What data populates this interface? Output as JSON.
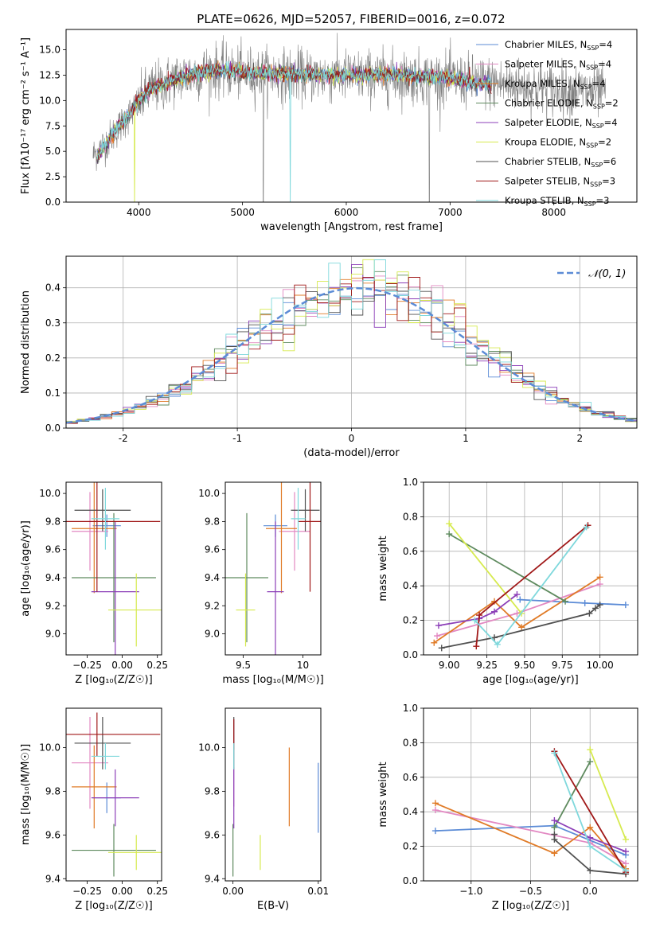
{
  "figure_title": "PLATE=0626, MJD=52057, FIBERID=0016, z=0.072",
  "colors": {
    "Chabrier MILES": "#5b8bd6",
    "Salpeter MILES": "#e288c2",
    "Kroupa MILES": "#e07b27",
    "Chabrier ELODIE": "#5e8a5e",
    "Salpeter ELODIE": "#8c3fb8",
    "Kroupa ELODIE": "#d6ea4f",
    "Chabrier STELIB": "#505050",
    "Salpeter STELIB": "#a01818",
    "Kroupa STELIB": "#7fd8dc",
    "data": "#808080"
  },
  "chart_data": [
    {
      "id": "spectrum",
      "type": "line",
      "xlabel": "wavelength [Angstrom, rest frame]",
      "ylabel": "Flux [fλ10⁻¹⁷ erg cm⁻² s⁻¹ A⁻¹]",
      "xlim": [
        3300,
        8800
      ],
      "ylim": [
        0,
        17
      ],
      "xticks": [
        4000,
        5000,
        6000,
        7000,
        8000
      ],
      "yticks": [
        0.0,
        2.5,
        5.0,
        7.5,
        10.0,
        12.5,
        15.0
      ],
      "legend_position": "upper-right",
      "legend": [
        {
          "name": "Chabrier MILES",
          "nssp": "4"
        },
        {
          "name": "Salpeter MILES",
          "nssp": "4"
        },
        {
          "name": "Kroupa MILES",
          "nssp": "4"
        },
        {
          "name": "Chabrier ELODIE",
          "nssp": "2"
        },
        {
          "name": "Salpeter ELODIE",
          "nssp": "4"
        },
        {
          "name": "Kroupa ELODIE",
          "nssp": "2"
        },
        {
          "name": "Chabrier STELIB",
          "nssp": "6"
        },
        {
          "name": "Salpeter STELIB",
          "nssp": "3"
        },
        {
          "name": "Kroupa STELIB",
          "nssp": "3"
        }
      ],
      "model_continuum": {
        "x": [
          3600,
          3700,
          3800,
          3900,
          4000,
          4100,
          4200,
          4400,
          4600,
          4800,
          5000,
          5200,
          5500,
          5800,
          6100,
          6400,
          6700,
          7000,
          7200,
          7400
        ],
        "y": [
          4.5,
          6.0,
          7.5,
          8.5,
          10.0,
          11.0,
          11.5,
          12.2,
          12.8,
          13.0,
          12.8,
          12.7,
          12.6,
          12.5,
          12.5,
          12.6,
          12.4,
          12.2,
          11.8,
          11.6
        ]
      },
      "data_continuum": {
        "x": [
          3550,
          3700,
          3900,
          4100,
          4400,
          4700,
          5000,
          5400,
          5800,
          6200,
          6600,
          7000,
          7400,
          7800,
          8200,
          8500
        ],
        "y": [
          4.5,
          6.0,
          8.5,
          11.0,
          12.3,
          13.0,
          12.7,
          12.5,
          12.4,
          12.4,
          12.3,
          12.1,
          11.7,
          11.3,
          11.0,
          10.8
        ]
      }
    },
    {
      "id": "residual-histogram",
      "type": "bar",
      "xlabel": "(data-model)/error",
      "ylabel": "Normed distribution",
      "xlim": [
        -2.5,
        2.5
      ],
      "ylim": [
        0,
        0.49
      ],
      "xticks": [
        -2,
        -1,
        0,
        1,
        2
      ],
      "yticks": [
        0.0,
        0.1,
        0.2,
        0.3,
        0.4
      ],
      "grid": true,
      "legend": [
        "𝒩(0, 1)"
      ],
      "legend_position": "upper-right",
      "bin_width": 0.1
    },
    {
      "id": "age-vs-Z",
      "type": "scatter",
      "xlabel": "Z [log₁₀(Z/Z☉)]",
      "ylabel": "age  [log₁₀(age/yr)]",
      "xlim": [
        -0.4,
        0.28
      ],
      "ylim": [
        8.85,
        10.08
      ],
      "xticks": [
        -0.25,
        0.0,
        0.25
      ],
      "xticklabels": [
        "−0.25",
        "0.00",
        "0.25"
      ],
      "yticks": [
        9.0,
        9.2,
        9.4,
        9.6,
        9.8,
        10.0
      ],
      "points": [
        {
          "model": "Chabrier MILES",
          "x": -0.11,
          "y": 9.77,
          "x_err": 0.1,
          "y_err": 0.08
        },
        {
          "model": "Salpeter MILES",
          "x": -0.23,
          "y": 9.73,
          "x_err": 0.13,
          "y_err": 0.28
        },
        {
          "model": "Kroupa MILES",
          "x": -0.2,
          "y": 9.75,
          "x_err": 0.16,
          "y_err": 0.46
        },
        {
          "model": "Chabrier ELODIE",
          "x": -0.06,
          "y": 9.4,
          "x_err": 0.3,
          "y_err": 0.46
        },
        {
          "model": "Salpeter ELODIE",
          "x": -0.05,
          "y": 9.3,
          "x_err": 0.17,
          "y_err": 0.5
        },
        {
          "model": "Kroupa ELODIE",
          "x": 0.1,
          "y": 9.17,
          "x_err": 0.2,
          "y_err": 0.26
        },
        {
          "model": "Chabrier STELIB",
          "x": -0.14,
          "y": 9.88,
          "x_err": 0.2,
          "y_err": 0.15
        },
        {
          "model": "Salpeter STELIB",
          "x": -0.18,
          "y": 9.8,
          "x_err": 0.45,
          "y_err": 0.5
        },
        {
          "model": "Kroupa STELIB",
          "x": -0.12,
          "y": 9.82,
          "x_err": 0.1,
          "y_err": 0.22
        }
      ]
    },
    {
      "id": "age-vs-mass",
      "type": "scatter",
      "xlabel": "mass [log₁₀(M/M☉)]",
      "ylabel": "",
      "xlim": [
        9.35,
        10.15
      ],
      "ylim": [
        8.85,
        10.08
      ],
      "xticks": [
        9.5,
        10.0
      ],
      "yticks": [
        9.0,
        9.2,
        9.4,
        9.6,
        9.8,
        10.0
      ],
      "points": [
        {
          "model": "Chabrier MILES",
          "x": 9.77,
          "y": 9.77,
          "x_err": 0.1,
          "y_err": 0.08
        },
        {
          "model": "Salpeter MILES",
          "x": 9.93,
          "y": 9.73,
          "x_err": 0.13,
          "y_err": 0.28
        },
        {
          "model": "Kroupa MILES",
          "x": 9.82,
          "y": 9.75,
          "x_err": 0.13,
          "y_err": 0.46
        },
        {
          "model": "Chabrier ELODIE",
          "x": 9.53,
          "y": 9.4,
          "x_err": 0.18,
          "y_err": 0.46
        },
        {
          "model": "Salpeter ELODIE",
          "x": 9.77,
          "y": 9.3,
          "x_err": 0.07,
          "y_err": 0.5
        },
        {
          "model": "Kroupa ELODIE",
          "x": 9.52,
          "y": 9.17,
          "x_err": 0.08,
          "y_err": 0.26
        },
        {
          "model": "Chabrier STELIB",
          "x": 10.02,
          "y": 9.88,
          "x_err": 0.12,
          "y_err": 0.15
        },
        {
          "model": "Salpeter STELIB",
          "x": 10.06,
          "y": 9.8,
          "x_err": 0.1,
          "y_err": 0.5
        },
        {
          "model": "Kroupa STELIB",
          "x": 9.96,
          "y": 9.82,
          "x_err": 0.06,
          "y_err": 0.22
        }
      ]
    },
    {
      "id": "mass-weight-vs-age",
      "type": "line",
      "xlabel": "age  [log₁₀(age/yr)]",
      "ylabel": "mass weight",
      "xlim": [
        8.83,
        10.25
      ],
      "ylim": [
        0.0,
        1.0
      ],
      "xticks": [
        9.0,
        9.25,
        9.5,
        9.75,
        10.0
      ],
      "xticklabels": [
        "9.00",
        "9.25",
        "9.50",
        "9.75",
        "10.00"
      ],
      "yticks": [
        0.0,
        0.2,
        0.4,
        0.6,
        0.8,
        1.0
      ],
      "grid": true,
      "series": [
        {
          "model": "Chabrier MILES",
          "x": [
            9.47,
            9.9,
            10.17
          ],
          "y": [
            0.32,
            0.3,
            0.29
          ]
        },
        {
          "model": "Salpeter MILES",
          "x": [
            8.92,
            9.45,
            10.0
          ],
          "y": [
            0.11,
            0.24,
            0.41
          ]
        },
        {
          "model": "Kroupa MILES",
          "x": [
            8.9,
            9.3,
            9.48,
            10.0
          ],
          "y": [
            0.07,
            0.31,
            0.16,
            0.45
          ]
        },
        {
          "model": "Chabrier ELODIE",
          "x": [
            9.0,
            9.77
          ],
          "y": [
            0.7,
            0.31
          ]
        },
        {
          "model": "Salpeter ELODIE",
          "x": [
            8.93,
            9.2,
            9.3,
            9.45
          ],
          "y": [
            0.17,
            0.21,
            0.25,
            0.35
          ]
        },
        {
          "model": "Kroupa ELODIE",
          "x": [
            9.0,
            9.48
          ],
          "y": [
            0.76,
            0.24
          ]
        },
        {
          "model": "Chabrier STELIB",
          "x": [
            8.95,
            9.3,
            9.93,
            9.97,
            10.0
          ],
          "y": [
            0.04,
            0.1,
            0.24,
            0.27,
            0.29
          ]
        },
        {
          "model": "Salpeter STELIB",
          "x": [
            9.18,
            9.2,
            9.92
          ],
          "y": [
            0.05,
            0.23,
            0.75
          ]
        },
        {
          "model": "Kroupa STELIB",
          "x": [
            9.17,
            9.32,
            9.91
          ],
          "y": [
            0.2,
            0.06,
            0.74
          ]
        }
      ]
    },
    {
      "id": "mass-vs-Z",
      "type": "scatter",
      "xlabel": "Z [log₁₀(Z/Z☉)]",
      "ylabel": "mass [log₁₀(M/M☉)]",
      "xlim": [
        -0.4,
        0.28
      ],
      "ylim": [
        9.39,
        10.18
      ],
      "xticks": [
        -0.25,
        0.0,
        0.25
      ],
      "xticklabels": [
        "−0.25",
        "0.00",
        "0.25"
      ],
      "yticks": [
        9.4,
        9.6,
        9.8,
        10.0
      ],
      "points": [
        {
          "model": "Chabrier MILES",
          "x": -0.11,
          "y": 9.77,
          "x_err": 0.1,
          "y_err": 0.07
        },
        {
          "model": "Salpeter MILES",
          "x": -0.23,
          "y": 9.93,
          "x_err": 0.13,
          "y_err": 0.21
        },
        {
          "model": "Kroupa MILES",
          "x": -0.2,
          "y": 9.82,
          "x_err": 0.16,
          "y_err": 0.19
        },
        {
          "model": "Chabrier ELODIE",
          "x": -0.06,
          "y": 9.53,
          "x_err": 0.3,
          "y_err": 0.12
        },
        {
          "model": "Salpeter ELODIE",
          "x": -0.05,
          "y": 9.77,
          "x_err": 0.17,
          "y_err": 0.13
        },
        {
          "model": "Kroupa ELODIE",
          "x": 0.1,
          "y": 9.52,
          "x_err": 0.2,
          "y_err": 0.08
        },
        {
          "model": "Chabrier STELIB",
          "x": -0.14,
          "y": 10.02,
          "x_err": 0.2,
          "y_err": 0.12
        },
        {
          "model": "Salpeter STELIB",
          "x": -0.18,
          "y": 10.06,
          "x_err": 0.45,
          "y_err": 0.1
        },
        {
          "model": "Kroupa STELIB",
          "x": -0.12,
          "y": 9.96,
          "x_err": 0.1,
          "y_err": 0.06
        }
      ]
    },
    {
      "id": "mass-vs-EBV",
      "type": "scatter",
      "xlabel": "E(B-V)",
      "ylabel": "",
      "xlim": [
        -0.0009,
        0.0103
      ],
      "ylim": [
        9.39,
        10.18
      ],
      "xticks": [
        0.0,
        0.01
      ],
      "xticklabels": [
        "0.00",
        "0.01"
      ],
      "yticks": [
        9.4,
        9.6,
        9.8,
        10.0
      ],
      "points": [
        {
          "model": "Chabrier MILES",
          "x": 0.01,
          "y": 9.77,
          "x_err": 0,
          "y_err": 0.16
        },
        {
          "model": "Salpeter MILES",
          "x": 0.0001,
          "y": 9.93,
          "x_err": 0,
          "y_err": 0.2
        },
        {
          "model": "Kroupa MILES",
          "x": 0.0066,
          "y": 9.82,
          "x_err": 0,
          "y_err": 0.18
        },
        {
          "model": "Chabrier ELODIE",
          "x": 0.0,
          "y": 9.53,
          "x_err": 0,
          "y_err": 0.12
        },
        {
          "model": "Salpeter ELODIE",
          "x": 0.0001,
          "y": 9.77,
          "x_err": 0,
          "y_err": 0.14
        },
        {
          "model": "Kroupa ELODIE",
          "x": 0.0032,
          "y": 9.52,
          "x_err": 0,
          "y_err": 0.08
        },
        {
          "model": "Chabrier STELIB",
          "x": 0.0001,
          "y": 10.02,
          "x_err": 0,
          "y_err": 0.12
        },
        {
          "model": "Salpeter STELIB",
          "x": 0.0001,
          "y": 10.06,
          "x_err": 0,
          "y_err": 0.07
        },
        {
          "model": "Kroupa STELIB",
          "x": 0.0001,
          "y": 9.96,
          "x_err": 0,
          "y_err": 0.06
        }
      ]
    },
    {
      "id": "mass-weight-vs-Z",
      "type": "line",
      "xlabel": "Z [log₁₀(Z/Z☉)]",
      "ylabel": "mass weight",
      "xlim": [
        -1.4,
        0.4
      ],
      "ylim": [
        0.0,
        1.0
      ],
      "xticks": [
        -1.0,
        -0.5,
        0.0
      ],
      "xticklabels": [
        "−1.0",
        "−0.5",
        "0.0"
      ],
      "yticks": [
        0.0,
        0.2,
        0.4,
        0.6,
        0.8,
        1.0
      ],
      "grid": true,
      "series": [
        {
          "model": "Chabrier MILES",
          "x": [
            -1.3,
            -0.3,
            0.3
          ],
          "y": [
            0.29,
            0.32,
            0.15
          ]
        },
        {
          "model": "Salpeter MILES",
          "x": [
            -1.3,
            0.0,
            0.3
          ],
          "y": [
            0.41,
            0.22,
            0.1
          ]
        },
        {
          "model": "Kroupa MILES",
          "x": [
            -1.3,
            -0.3,
            0.0,
            0.3
          ],
          "y": [
            0.45,
            0.16,
            0.31,
            0.07
          ]
        },
        {
          "model": "Chabrier ELODIE",
          "x": [
            -0.3,
            0.0
          ],
          "y": [
            0.31,
            0.69
          ]
        },
        {
          "model": "Salpeter ELODIE",
          "x": [
            -0.3,
            0.0,
            0.3
          ],
          "y": [
            0.35,
            0.25,
            0.17
          ]
        },
        {
          "model": "Kroupa ELODIE",
          "x": [
            0.0,
            0.3
          ],
          "y": [
            0.76,
            0.24
          ]
        },
        {
          "model": "Chabrier STELIB",
          "x": [
            -0.3,
            -0.3,
            0.0,
            0.3
          ],
          "y": [
            0.27,
            0.24,
            0.06,
            0.04
          ]
        },
        {
          "model": "Salpeter STELIB",
          "x": [
            -0.3,
            0.3
          ],
          "y": [
            0.75,
            0.05
          ]
        },
        {
          "model": "Kroupa STELIB",
          "x": [
            -0.3,
            0.0,
            0.3
          ],
          "y": [
            0.74,
            0.2,
            0.06
          ]
        }
      ]
    }
  ]
}
